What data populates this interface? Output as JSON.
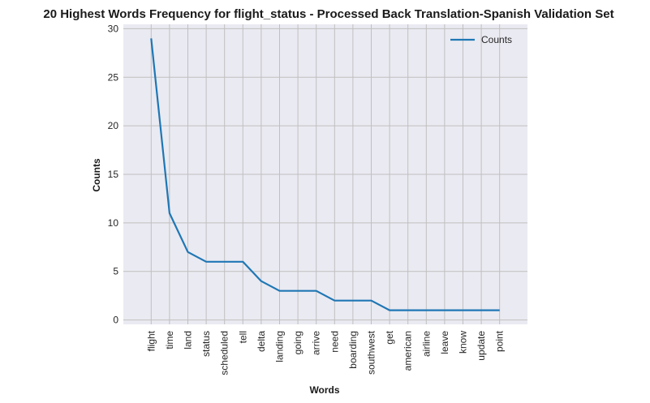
{
  "chart_data": {
    "type": "line",
    "title": "20 Highest Words Frequency for flight_status - Processed Back Translation-Spanish Validation Set",
    "xlabel": "Words",
    "ylabel": "Counts",
    "categories": [
      "flight",
      "time",
      "land",
      "status",
      "scheduled",
      "tell",
      "delta",
      "landing",
      "going",
      "arrive",
      "need",
      "boarding",
      "southwest",
      "get",
      "american",
      "airline",
      "leave",
      "know",
      "update",
      "point"
    ],
    "series": [
      {
        "name": "Counts",
        "values": [
          29,
          11,
          7,
          6,
          6,
          6,
          4,
          3,
          3,
          3,
          2,
          2,
          2,
          1,
          1,
          1,
          1,
          1,
          1,
          1
        ],
        "color": "#1f77b4"
      }
    ],
    "ylim": [
      -0.45,
      30.45
    ],
    "yticks": [
      0,
      5,
      10,
      15,
      20,
      25,
      30
    ],
    "grid": true,
    "legend": "top-right",
    "background": "#eaeaf2",
    "grid_color": "#c0c0c0"
  }
}
